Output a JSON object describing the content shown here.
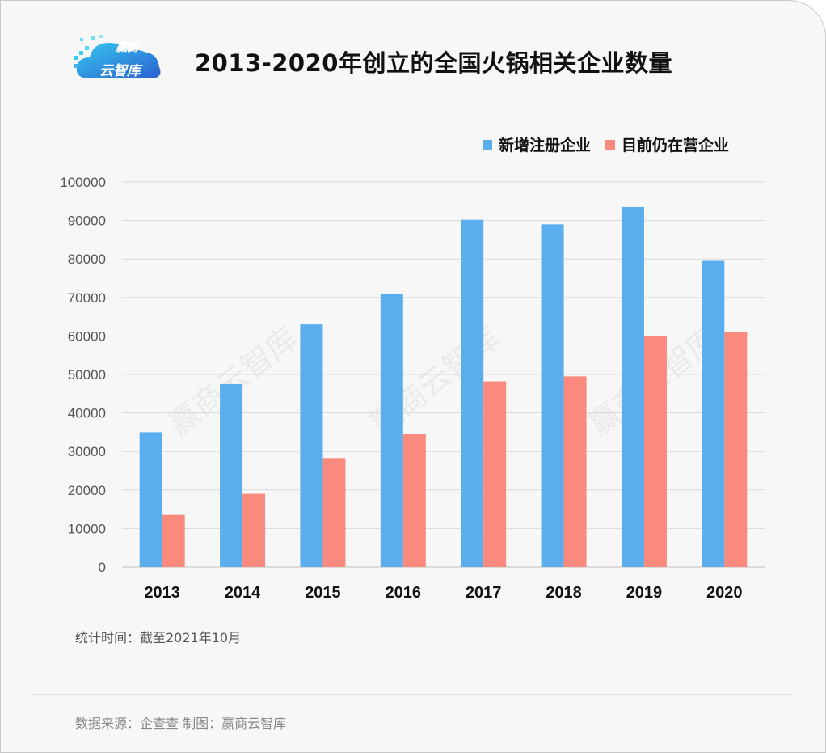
{
  "brand": {
    "line1": "赢商",
    "line2": "云智库",
    "watermark": "赢商云智库"
  },
  "colors": {
    "series1": "#5aaeee",
    "series2": "#f98a7d",
    "grid": "#d9d9d9",
    "axis": "#555555"
  },
  "footnote": "统计时间：截至2021年10月",
  "source": "数据来源：企查查   制图：赢商云智库",
  "chart_data": {
    "type": "bar",
    "title": "2013-2020年创立的全国火锅相关企业数量",
    "categories": [
      "2013",
      "2014",
      "2015",
      "2016",
      "2017",
      "2018",
      "2019",
      "2020"
    ],
    "series": [
      {
        "name": "新增注册企业",
        "values": [
          35000,
          47500,
          63000,
          71000,
          90200,
          89000,
          93500,
          79500
        ]
      },
      {
        "name": "目前仍在营企业",
        "values": [
          13500,
          19000,
          28300,
          34500,
          48200,
          49500,
          60000,
          61000
        ]
      }
    ],
    "yticks": [
      "0",
      "10000",
      "20000",
      "30000",
      "40000",
      "50000",
      "60000",
      "70000",
      "80000",
      "90000",
      "100000"
    ],
    "ylim": [
      0,
      100000
    ],
    "grid": true,
    "legend": "top-right"
  }
}
